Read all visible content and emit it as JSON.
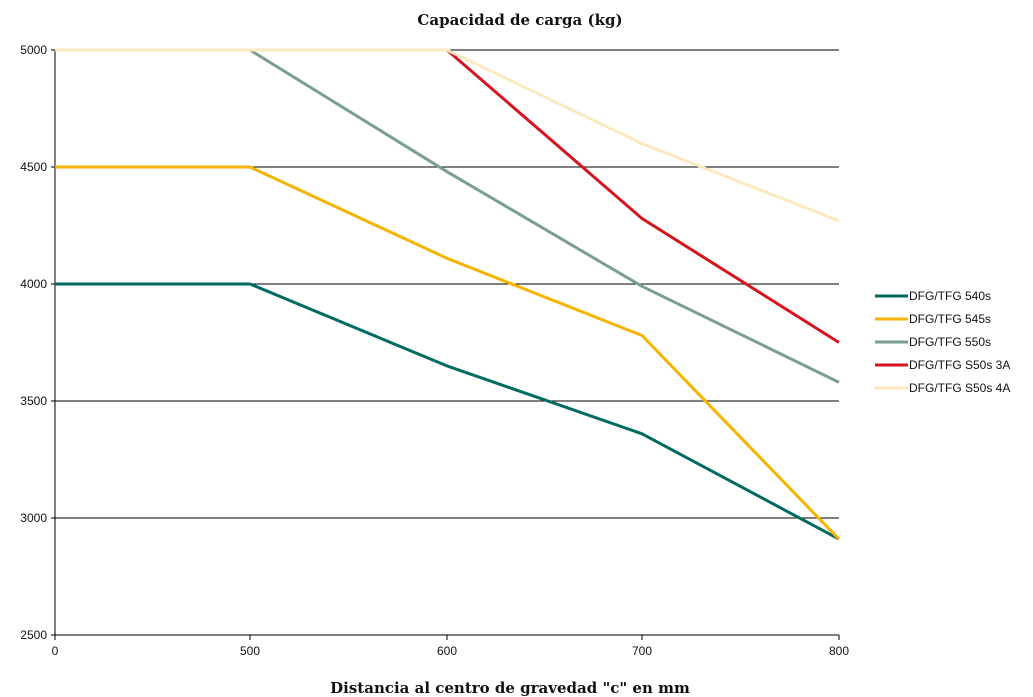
{
  "chart_data": {
    "type": "line",
    "title": "Capacidad de carga (kg)",
    "xlabel": "Distancia al centro de gravedad \"c\" en mm",
    "ylabel": "",
    "x": [
      "0",
      "500",
      "600",
      "700",
      "800"
    ],
    "ylim": [
      2500,
      5000
    ],
    "y_ticks": [
      "2500",
      "3000",
      "3500",
      "4000",
      "4500",
      "5000"
    ],
    "grid": true,
    "legend_position": "right",
    "series": [
      {
        "name": "DFG/TFG 540s",
        "color": "#006b5f",
        "values": [
          4000,
          4000,
          3650,
          3360,
          2910
        ]
      },
      {
        "name": "DFG/TFG 545s",
        "color": "#f5b400",
        "values": [
          4500,
          4500,
          4110,
          3780,
          2910
        ]
      },
      {
        "name": "DFG/TFG 550s",
        "color": "#7a9e96",
        "values": [
          5000,
          5000,
          4480,
          3990,
          3580
        ]
      },
      {
        "name": "DFG/TFG S50s 3A",
        "color": "#d7141e",
        "values": [
          5000,
          5000,
          5000,
          4280,
          3750
        ]
      },
      {
        "name": "DFG/TFG S50s 4A",
        "color": "#fde8bf",
        "values": [
          5000,
          5000,
          5000,
          4600,
          4270
        ]
      }
    ]
  }
}
